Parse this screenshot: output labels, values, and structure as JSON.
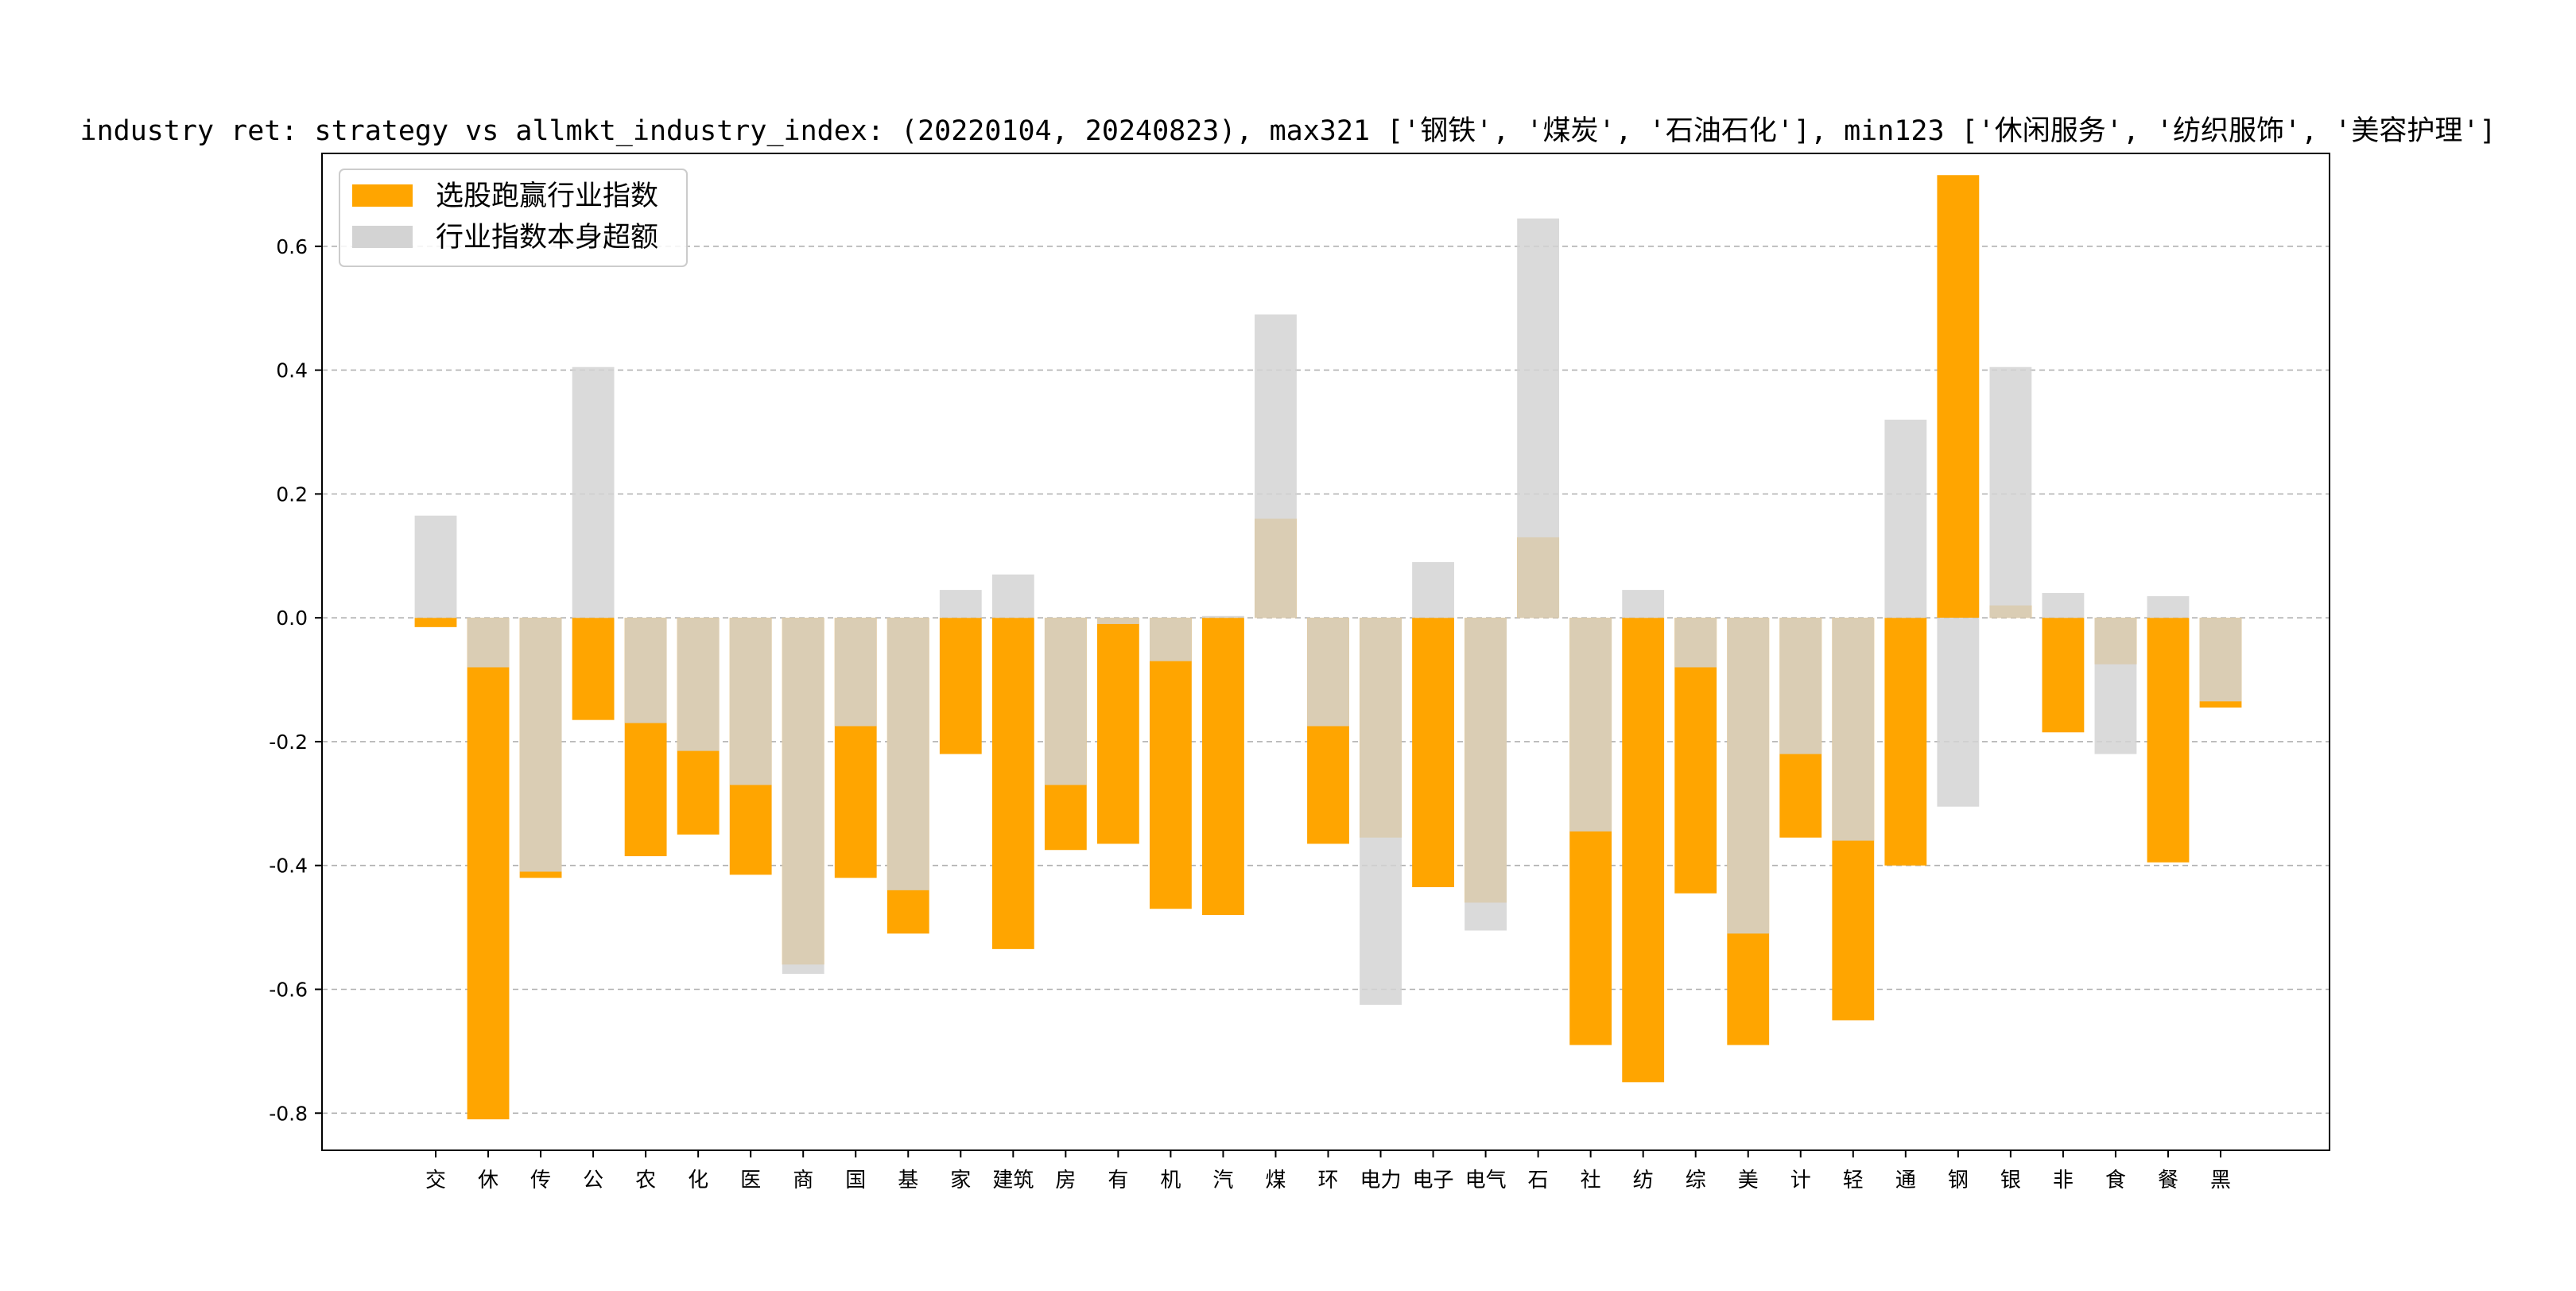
{
  "chart_data": {
    "type": "bar",
    "title": "industry ret: strategy vs allmkt_industry_index: (20220104, 20240823), max321 ['钢铁', '煤炭', '石油石化'], min123 ['休闲服务', '纺织服饰', '美容护理']",
    "xlabel": "",
    "ylabel": "",
    "ylim": [
      -0.86,
      0.75
    ],
    "yticks": [
      -0.8,
      -0.6,
      -0.4,
      -0.2,
      0.0,
      0.2,
      0.4,
      0.6
    ],
    "ytick_labels": [
      "-0.8",
      "-0.6",
      "-0.4",
      "-0.2",
      "0.0",
      "0.2",
      "0.4",
      "0.6"
    ],
    "grid": "horizontal dashed",
    "legend_position": "top-left",
    "categories": [
      "交",
      "休",
      "传",
      "公",
      "农",
      "化",
      "医",
      "商",
      "国",
      "基",
      "家",
      "建筑",
      "房",
      "有",
      "机",
      "汽",
      "煤",
      "环",
      "电力",
      "电子",
      "电气",
      "石",
      "社",
      "纺",
      "综",
      "美",
      "计",
      "轻",
      "通",
      "钢",
      "银",
      "非",
      "食",
      "餐",
      "黑"
    ],
    "series": [
      {
        "name": "选股跑赢行业指数",
        "color": "#ffa500",
        "values": [
          -0.015,
          -0.81,
          -0.42,
          -0.165,
          -0.385,
          -0.35,
          -0.415,
          -0.56,
          -0.42,
          -0.51,
          -0.22,
          -0.535,
          -0.375,
          -0.365,
          -0.47,
          -0.48,
          0.16,
          -0.365,
          -0.355,
          -0.435,
          -0.46,
          0.13,
          -0.69,
          -0.75,
          -0.445,
          -0.69,
          -0.355,
          -0.65,
          -0.4,
          0.715,
          0.02,
          -0.185,
          -0.075,
          -0.395,
          -0.145
        ]
      },
      {
        "name": "行业指数本身超额",
        "color": "#d3d3d3",
        "values": [
          0.165,
          -0.08,
          -0.41,
          0.405,
          -0.17,
          -0.215,
          -0.27,
          -0.575,
          -0.175,
          -0.44,
          0.045,
          0.07,
          -0.27,
          -0.01,
          -0.07,
          0.003,
          0.49,
          -0.175,
          -0.625,
          0.09,
          -0.505,
          0.645,
          -0.345,
          0.045,
          -0.08,
          -0.51,
          -0.22,
          -0.36,
          0.32,
          -0.305,
          0.405,
          0.04,
          -0.22,
          0.035,
          -0.135
        ]
      }
    ]
  }
}
